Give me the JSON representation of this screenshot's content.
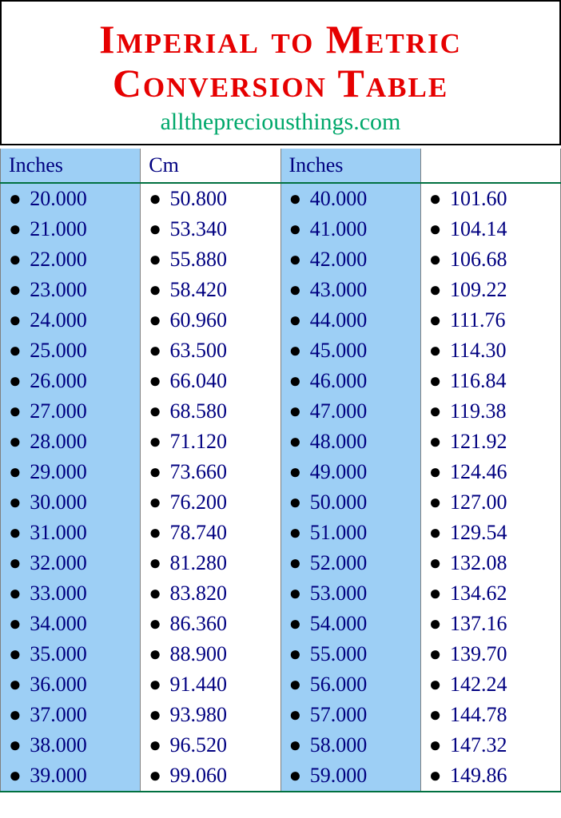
{
  "header": {
    "title_line1": "Imperial to Metric",
    "title_line2": "Conversion Table",
    "subtitle": "allthepreciousthings.com"
  },
  "table": {
    "columns": [
      "Inches",
      "Cm",
      "Inches",
      ""
    ],
    "column_backgrounds": [
      "#9dcff5",
      "#ffffff",
      "#9dcff5",
      "#ffffff"
    ],
    "header_border_color": "#007040",
    "cell_border_color": "#808080",
    "text_color": "#000080",
    "rows": [
      [
        "20.000",
        "50.800",
        "40.000",
        "101.60"
      ],
      [
        "21.000",
        "53.340",
        "41.000",
        "104.14"
      ],
      [
        "22.000",
        "55.880",
        "42.000",
        "106.68"
      ],
      [
        "23.000",
        "58.420",
        "43.000",
        "109.22"
      ],
      [
        "24.000",
        "60.960",
        "44.000",
        "111.76"
      ],
      [
        "25.000",
        "63.500",
        "45.000",
        "114.30"
      ],
      [
        "26.000",
        "66.040",
        "46.000",
        "116.84"
      ],
      [
        "27.000",
        "68.580",
        "47.000",
        "119.38"
      ],
      [
        "28.000",
        "71.120",
        "48.000",
        "121.92"
      ],
      [
        "29.000",
        "73.660",
        "49.000",
        "124.46"
      ],
      [
        "30.000",
        "76.200",
        "50.000",
        "127.00"
      ],
      [
        "31.000",
        "78.740",
        "51.000",
        "129.54"
      ],
      [
        "32.000",
        "81.280",
        "52.000",
        "132.08"
      ],
      [
        "33.000",
        "83.820",
        "53.000",
        "134.62"
      ],
      [
        "34.000",
        "86.360",
        "54.000",
        "137.16"
      ],
      [
        "35.000",
        "88.900",
        "55.000",
        "139.70"
      ],
      [
        "36.000",
        "91.440",
        "56.000",
        "142.24"
      ],
      [
        "37.000",
        "93.980",
        "57.000",
        "144.78"
      ],
      [
        "38.000",
        "96.520",
        "58.000",
        "147.32"
      ],
      [
        "39.000",
        "99.060",
        "59.000",
        "149.86"
      ]
    ]
  },
  "styles": {
    "title_color": "#e60000",
    "subtitle_color": "#00a86b",
    "title_fontsize": 50,
    "subtitle_fontsize": 30,
    "cell_fontsize": 26
  }
}
